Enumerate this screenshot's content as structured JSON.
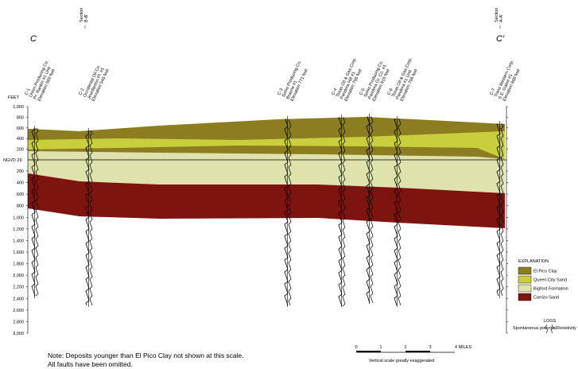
{
  "section": {
    "start": "C",
    "end": "C'"
  },
  "section_markers": [
    {
      "label": "Section",
      "id": "B-B'"
    },
    {
      "label": "Section",
      "id": "A-A'"
    }
  ],
  "wells": [
    {
      "id": "C-1",
      "lines": [
        "Union Producing Co.",
        "Pr. Rankin #1 Unit",
        "Elevation 589 feet"
      ]
    },
    {
      "id": "C-2",
      "lines": [
        "Occidental Oil Co.",
        "Jourdanton Pl. #1",
        "Elevation 546 feet"
      ]
    },
    {
      "id": "C-3",
      "lines": [
        "Sohio Producing Co.",
        "Braune #1",
        "Elevation 771 feet"
      ]
    },
    {
      "id": "C-4",
      "lines": [
        "Texas Oil & Gas Corp.",
        "Pandora Hill #1",
        "Elevation 796 feet"
      ]
    },
    {
      "id": "C-5",
      "lines": [
        "Sohio Producing Co.",
        "Pandora Gr. Co. #1",
        "Elevation 815 feet"
      ]
    },
    {
      "id": "C-6",
      "lines": [
        "Texas Oil & Gas Corp.",
        "Pandora #1 Unit",
        "Elevation 796 feet"
      ]
    },
    {
      "id": "C-7",
      "lines": [
        "Trans Western Corp.",
        "S.E. Gabol #1",
        "Elevation 668 feet"
      ]
    }
  ],
  "depth_axis": {
    "unit": "FEET",
    "datum": "NGVD 29",
    "above": [
      "1,000",
      "800",
      "600",
      "400",
      "200"
    ],
    "below": [
      "200",
      "400",
      "600",
      "800",
      "1,000",
      "1,200",
      "1,400",
      "1,600",
      "1,800",
      "2,000",
      "2,200",
      "2,400",
      "2,600",
      "2,800",
      "3,000"
    ]
  },
  "explanation": {
    "title": "EXPLANATION",
    "items": [
      "El Pico Clay",
      "Queen City Sand",
      "Bigford Formation",
      "Carrizo Sand"
    ]
  },
  "logs": {
    "title": "LOGS",
    "left": "Spontaneous potential",
    "right": "Resistivity"
  },
  "scale": {
    "labels": [
      "0",
      "1",
      "2",
      "3",
      "4 MILES"
    ],
    "note": "Vertical scale greatly exaggerated"
  },
  "notes": [
    "Note: Deposits younger than El Pico Clay not shown at this scale.",
    "All faults have been omitted."
  ]
}
